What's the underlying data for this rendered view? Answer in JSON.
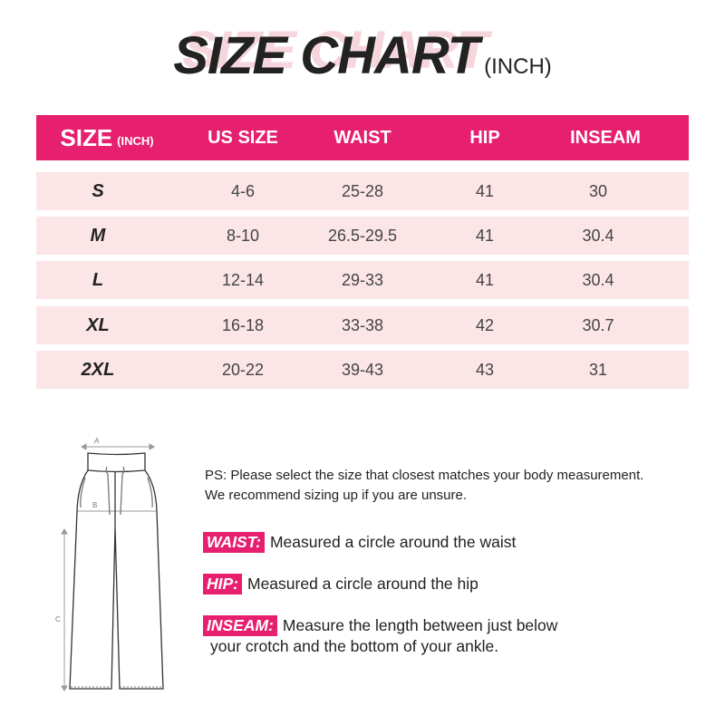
{
  "title": {
    "main": "SIZE CHART",
    "unit": "(INCH)"
  },
  "colors": {
    "accent": "#e61f6f",
    "row_bg": "#fbe5e7"
  },
  "table": {
    "headers": {
      "size": "SIZE",
      "size_unit": "(INCH)",
      "us_size": "US SIZE",
      "waist": "WAIST",
      "hip": "HIP",
      "inseam": "INSEAM"
    },
    "rows": [
      {
        "size": "S",
        "us_size": "4-6",
        "waist": "25-28",
        "hip": "41",
        "inseam": "30"
      },
      {
        "size": "M",
        "us_size": "8-10",
        "waist": "26.5-29.5",
        "hip": "41",
        "inseam": "30.4"
      },
      {
        "size": "L",
        "us_size": "12-14",
        "waist": "29-33",
        "hip": "41",
        "inseam": "30.4"
      },
      {
        "size": "XL",
        "us_size": "16-18",
        "waist": "33-38",
        "hip": "42",
        "inseam": "30.7"
      },
      {
        "size": "2XL",
        "us_size": "20-22",
        "waist": "39-43",
        "hip": "43",
        "inseam": "31"
      }
    ]
  },
  "diagram": {
    "label_a": "A",
    "label_b": "B",
    "label_c": "C"
  },
  "notes": {
    "line1": "PS: Please select the size that closest matches your body measurement.",
    "line2": "We recommend sizing up if you are unsure."
  },
  "definitions": [
    {
      "label": "WAIST:",
      "text": "Measured a circle around the waist"
    },
    {
      "label": "HIP:",
      "text": "Measured a circle around the hip"
    },
    {
      "label": "INSEAM:",
      "text": "Measure the length between just below",
      "text2": "your crotch and the bottom of your ankle."
    }
  ]
}
